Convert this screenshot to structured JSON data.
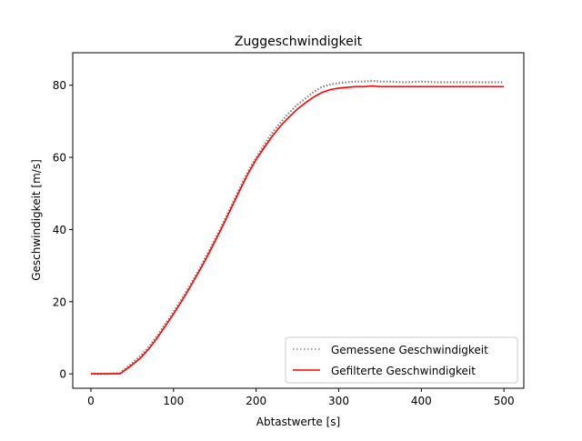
{
  "chart_data": {
    "type": "line",
    "title": "Zuggeschwindigkeit",
    "xlabel": "Abtastwerte [s]",
    "ylabel": "Geschwindigkeit [m/s]",
    "xlim": [
      -22,
      524
    ],
    "ylim": [
      -4,
      89
    ],
    "xticks": [
      0,
      100,
      200,
      300,
      400,
      500
    ],
    "yticks": [
      0,
      20,
      40,
      60,
      80
    ],
    "grid": false,
    "legend_position": "lower-right",
    "series": [
      {
        "name": "Gemessene Geschwindigkeit",
        "color": "#808080",
        "style": "dotted",
        "x": [
          0,
          20,
          35,
          40,
          50,
          60,
          70,
          80,
          90,
          100,
          110,
          120,
          130,
          140,
          150,
          160,
          170,
          180,
          190,
          200,
          210,
          220,
          230,
          240,
          250,
          260,
          270,
          280,
          290,
          300,
          310,
          320,
          330,
          340,
          350,
          360,
          380,
          400,
          420,
          440,
          460,
          480,
          500
        ],
        "y": [
          0,
          0,
          0.2,
          1.2,
          3.0,
          5.0,
          7.5,
          10.5,
          13.8,
          17.2,
          20.8,
          24.6,
          28.6,
          32.8,
          37.2,
          41.8,
          46.6,
          51.4,
          56.0,
          60.0,
          63.6,
          67.0,
          69.8,
          72.4,
          74.6,
          76.4,
          78.2,
          79.6,
          80.2,
          80.6,
          80.8,
          81.0,
          81.0,
          81.2,
          81.0,
          81.0,
          80.8,
          81.0,
          80.8,
          80.8,
          80.8,
          80.8,
          80.8
        ]
      },
      {
        "name": "Gefilterte Geschwindigkeit",
        "color": "#ff0000",
        "style": "solid",
        "x": [
          0,
          20,
          35,
          40,
          50,
          60,
          70,
          80,
          90,
          100,
          110,
          120,
          130,
          140,
          150,
          160,
          170,
          180,
          190,
          200,
          210,
          220,
          230,
          240,
          250,
          260,
          270,
          280,
          290,
          300,
          310,
          320,
          330,
          340,
          350,
          360,
          380,
          400,
          420,
          440,
          460,
          480,
          500
        ],
        "y": [
          0,
          0,
          0,
          0.8,
          2.5,
          4.4,
          6.9,
          9.9,
          13.2,
          16.6,
          20.2,
          24.0,
          28.0,
          32.2,
          36.6,
          41.2,
          46.0,
          50.8,
          55.4,
          59.4,
          62.8,
          66.0,
          68.8,
          71.2,
          73.4,
          75.2,
          76.8,
          78.0,
          78.8,
          79.2,
          79.4,
          79.6,
          79.6,
          79.8,
          79.6,
          79.6,
          79.6,
          79.6,
          79.6,
          79.6,
          79.6,
          79.6,
          79.6
        ]
      }
    ]
  }
}
